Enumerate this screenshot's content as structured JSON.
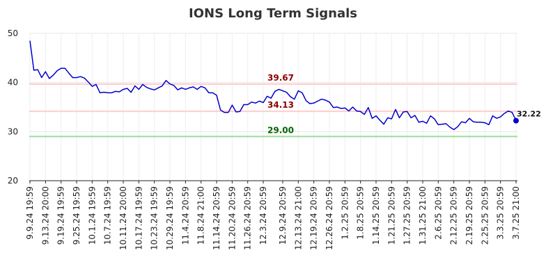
{
  "chart_data": {
    "type": "line",
    "title": "IONS Long Term Signals",
    "xlabel": "",
    "ylabel": "",
    "ylim": [
      20,
      50
    ],
    "yticks": [
      20,
      30,
      40,
      50
    ],
    "grid": true,
    "x_tick_labels": [
      "9.9.24 19:59",
      "9.13.24 20:00",
      "9.19.24 19:59",
      "9.25.24 19:59",
      "10.1.24 19:59",
      "10.7.24 19:59",
      "10.11.24 20:00",
      "10.17.24 19:59",
      "10.23.24 19:59",
      "10.29.24 19:59",
      "11.4.24 20:59",
      "11.8.24 21:00",
      "11.14.24 20:59",
      "11.20.24 20:59",
      "11.26.24 20:59",
      "12.3.24 20:59",
      "12.9.24 20:59",
      "12.13.24 21:00",
      "12.19.24 20:59",
      "12.26.24 20:59",
      "1.2.25 20:59",
      "1.8.25 20:59",
      "1.14.25 20:59",
      "1.21.25 20:59",
      "1.27.25 20:59",
      "1.31.25 21:00",
      "2.6.25 20:59",
      "2.12.25 20:59",
      "2.19.25 20:59",
      "2.25.25 20:59",
      "3.3.25 20:59",
      "3.7.25 21:00"
    ],
    "series": [
      {
        "color": "#0000cc",
        "values": [
          48.5,
          42.5,
          42.6,
          41.0,
          42.2,
          40.8,
          41.5,
          42.4,
          42.9,
          42.9,
          41.9,
          41.0,
          41.0,
          41.2,
          40.9,
          40.1,
          39.2,
          39.6,
          37.9,
          38.0,
          37.9,
          37.9,
          38.2,
          38.1,
          38.6,
          38.8,
          38.0,
          39.3,
          38.6,
          39.6,
          39.0,
          38.7,
          38.5,
          38.9,
          39.3,
          40.4,
          39.7,
          39.4,
          38.5,
          38.9,
          38.6,
          38.9,
          39.1,
          38.6,
          39.2,
          38.9,
          37.9,
          37.9,
          37.4,
          34.4,
          33.9,
          33.9,
          35.4,
          34.0,
          34.1,
          35.5,
          35.5,
          36.0,
          35.8,
          36.2,
          35.9,
          37.2,
          36.8,
          38.2,
          38.6,
          38.3,
          38.0,
          37.1,
          36.6,
          38.3,
          37.9,
          36.3,
          35.7,
          35.8,
          36.2,
          36.6,
          36.4,
          36.0,
          34.9,
          35.0,
          34.7,
          34.8,
          34.2,
          35.0,
          34.2,
          34.1,
          33.5,
          34.9,
          32.7,
          33.2,
          32.3,
          31.5,
          32.8,
          32.6,
          34.5,
          32.8,
          34.0,
          34.1,
          32.8,
          33.3,
          31.9,
          32.1,
          31.7,
          33.2,
          32.6,
          31.4,
          31.5,
          31.6,
          30.9,
          30.4,
          31.0,
          32.0,
          31.8,
          32.7,
          32.0,
          31.9,
          31.9,
          31.8,
          31.4,
          33.2,
          32.7,
          33.0,
          33.7,
          34.2,
          33.9,
          32.22
        ]
      }
    ],
    "levels": [
      {
        "value": 39.67,
        "label": "39.67",
        "line_color": "#ffcccc",
        "text_color": "#8b0000"
      },
      {
        "value": 34.13,
        "label": "34.13",
        "line_color": "#ffcccc",
        "text_color": "#8b0000"
      },
      {
        "value": 29.0,
        "label": "29.00",
        "line_color": "#99dd99",
        "text_color": "#006400"
      }
    ],
    "last_value_label": "32.22"
  }
}
